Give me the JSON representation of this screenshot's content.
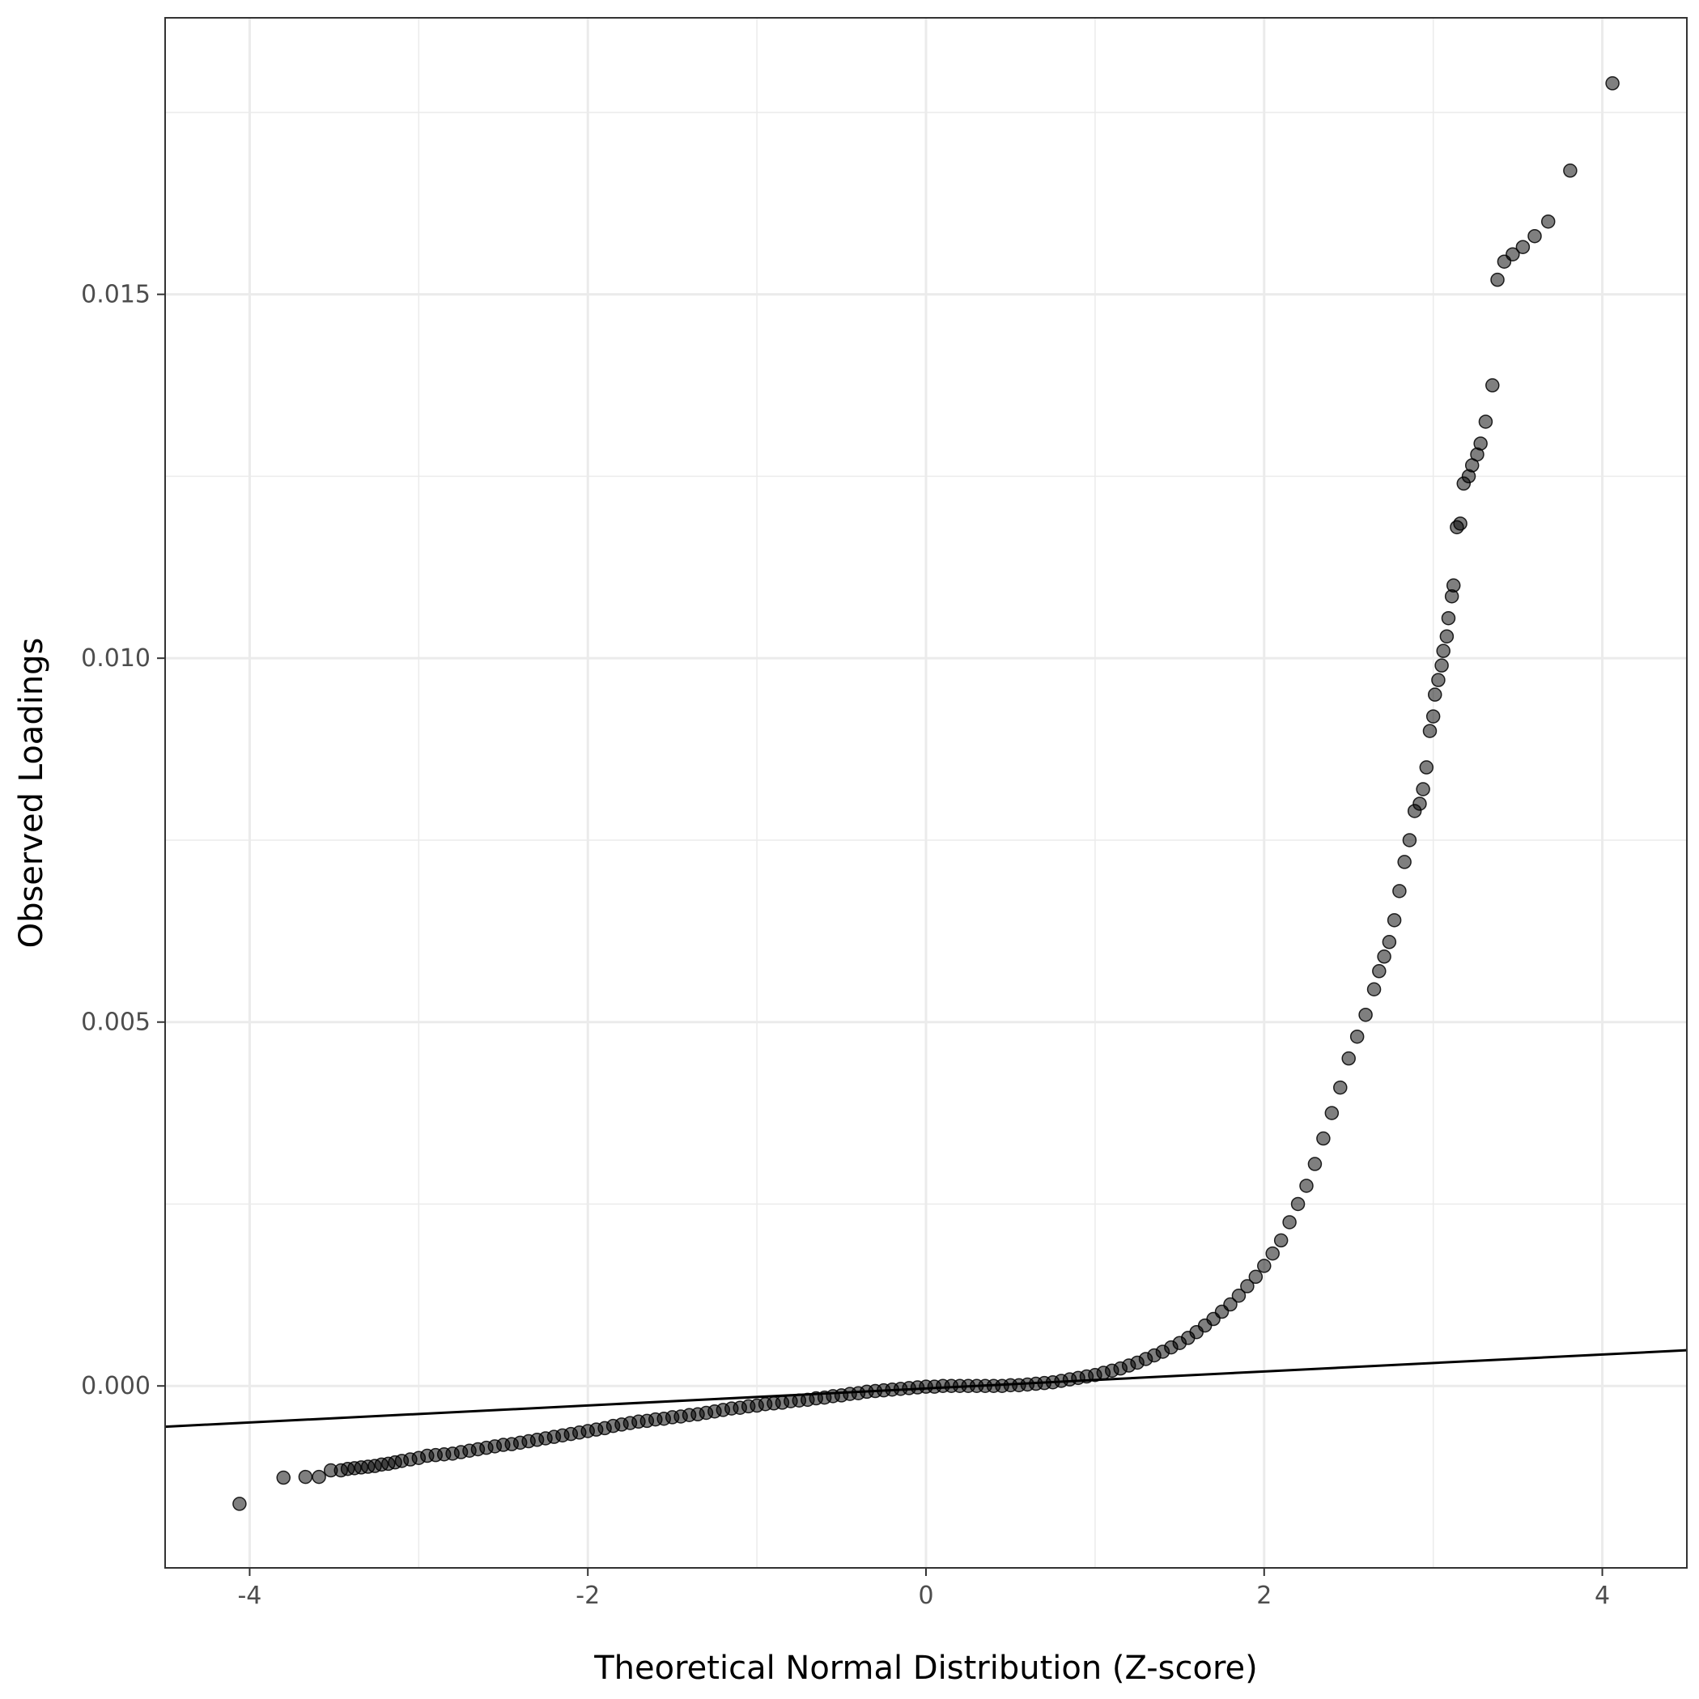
{
  "chart_data": {
    "type": "scatter",
    "title": "",
    "xlabel": "Theoretical Normal Distribution (Z-score)",
    "ylabel": "Observed Loadings",
    "xlim": [
      -4.5,
      4.5
    ],
    "ylim": [
      -0.0025,
      0.0188
    ],
    "x_ticks": [
      -4,
      -2,
      0,
      2,
      4
    ],
    "x_tick_labels": [
      "-4",
      "-2",
      "0",
      "2",
      "4"
    ],
    "y_ticks": [
      0.0,
      0.005,
      0.01,
      0.015
    ],
    "y_tick_labels": [
      "0.000",
      "0.005",
      "0.010",
      "0.015"
    ],
    "grid": true,
    "theme": "black-and-white with light grey gridlines",
    "point_color": "#000000",
    "point_opacity": 0.5,
    "reference_line": {
      "color": "#000000",
      "points": [
        [
          -4.5,
          -0.00056
        ],
        [
          4.5,
          0.00049
        ]
      ]
    },
    "series": [
      {
        "points": [
          [
            -4.06,
            -0.00162
          ],
          [
            -3.8,
            -0.00126
          ],
          [
            -3.67,
            -0.00125
          ],
          [
            -3.59,
            -0.00125
          ],
          [
            -3.52,
            -0.00116
          ],
          [
            -3.46,
            -0.00116
          ],
          [
            -3.42,
            -0.00114
          ],
          [
            -3.38,
            -0.00113
          ],
          [
            -3.34,
            -0.00112
          ],
          [
            -3.3,
            -0.00111
          ],
          [
            -3.26,
            -0.0011
          ],
          [
            -3.22,
            -0.00108
          ],
          [
            -3.18,
            -0.00107
          ],
          [
            -3.14,
            -0.00105
          ],
          [
            -3.1,
            -0.00103
          ],
          [
            -3.05,
            -0.00101
          ],
          [
            -3.0,
            -0.00099
          ],
          [
            -2.95,
            -0.00096
          ],
          [
            -2.9,
            -0.00095
          ],
          [
            -2.85,
            -0.00094
          ],
          [
            -2.8,
            -0.00093
          ],
          [
            -2.75,
            -0.00091
          ],
          [
            -2.7,
            -0.00089
          ],
          [
            -2.65,
            -0.00087
          ],
          [
            -2.6,
            -0.00085
          ],
          [
            -2.55,
            -0.00083
          ],
          [
            -2.5,
            -0.00081
          ],
          [
            -2.45,
            -0.0008
          ],
          [
            -2.4,
            -0.00078
          ],
          [
            -2.35,
            -0.00076
          ],
          [
            -2.3,
            -0.00074
          ],
          [
            -2.25,
            -0.00072
          ],
          [
            -2.2,
            -0.0007
          ],
          [
            -2.15,
            -0.00068
          ],
          [
            -2.1,
            -0.00066
          ],
          [
            -2.05,
            -0.00064
          ],
          [
            -2.0,
            -0.00062
          ],
          [
            -1.95,
            -0.0006
          ],
          [
            -1.9,
            -0.00058
          ],
          [
            -1.85,
            -0.00055
          ],
          [
            -1.8,
            -0.00053
          ],
          [
            -1.75,
            -0.00051
          ],
          [
            -1.7,
            -0.00049
          ],
          [
            -1.65,
            -0.00048
          ],
          [
            -1.6,
            -0.00046
          ],
          [
            -1.55,
            -0.00045
          ],
          [
            -1.5,
            -0.00043
          ],
          [
            -1.45,
            -0.00042
          ],
          [
            -1.4,
            -0.0004
          ],
          [
            -1.35,
            -0.00039
          ],
          [
            -1.3,
            -0.00037
          ],
          [
            -1.25,
            -0.00035
          ],
          [
            -1.2,
            -0.00033
          ],
          [
            -1.15,
            -0.00031
          ],
          [
            -1.1,
            -0.0003
          ],
          [
            -1.05,
            -0.00028
          ],
          [
            -1.0,
            -0.00027
          ],
          [
            -0.95,
            -0.00025
          ],
          [
            -0.9,
            -0.00024
          ],
          [
            -0.85,
            -0.00023
          ],
          [
            -0.8,
            -0.00021
          ],
          [
            -0.75,
            -0.0002
          ],
          [
            -0.7,
            -0.00019
          ],
          [
            -0.65,
            -0.00017
          ],
          [
            -0.6,
            -0.00016
          ],
          [
            -0.55,
            -0.00014
          ],
          [
            -0.5,
            -0.00013
          ],
          [
            -0.45,
            -0.00011
          ],
          [
            -0.4,
            -0.0001
          ],
          [
            -0.35,
            -8e-05
          ],
          [
            -0.3,
            -7e-05
          ],
          [
            -0.25,
            -6e-05
          ],
          [
            -0.2,
            -5e-05
          ],
          [
            -0.15,
            -4e-05
          ],
          [
            -0.1,
            -3e-05
          ],
          [
            -0.05,
            -2e-05
          ],
          [
            0.0,
            -1e-05
          ],
          [
            0.05,
            -1e-05
          ],
          [
            0.1,
            0.0
          ],
          [
            0.15,
            0.0
          ],
          [
            0.2,
            0.0
          ],
          [
            0.25,
            0.0
          ],
          [
            0.3,
            0.0
          ],
          [
            0.35,
            0.0
          ],
          [
            0.4,
            0.0
          ],
          [
            0.45,
            0.0
          ],
          [
            0.5,
            1e-05
          ],
          [
            0.55,
            1e-05
          ],
          [
            0.6,
            2e-05
          ],
          [
            0.65,
            3e-05
          ],
          [
            0.7,
            4e-05
          ],
          [
            0.75,
            5e-05
          ],
          [
            0.8,
            7e-05
          ],
          [
            0.85,
            9e-05
          ],
          [
            0.9,
            0.00011
          ],
          [
            0.95,
            0.00013
          ],
          [
            1.0,
            0.00015
          ],
          [
            1.05,
            0.00018
          ],
          [
            1.1,
            0.00021
          ],
          [
            1.15,
            0.00024
          ],
          [
            1.2,
            0.00028
          ],
          [
            1.25,
            0.00032
          ],
          [
            1.3,
            0.00037
          ],
          [
            1.35,
            0.00042
          ],
          [
            1.4,
            0.00047
          ],
          [
            1.45,
            0.00053
          ],
          [
            1.5,
            0.00059
          ],
          [
            1.55,
            0.00066
          ],
          [
            1.6,
            0.00074
          ],
          [
            1.65,
            0.00083
          ],
          [
            1.7,
            0.00092
          ],
          [
            1.75,
            0.00102
          ],
          [
            1.8,
            0.00112
          ],
          [
            1.85,
            0.00124
          ],
          [
            1.9,
            0.00137
          ],
          [
            1.95,
            0.0015
          ],
          [
            2.0,
            0.00165
          ],
          [
            2.05,
            0.00182
          ],
          [
            2.1,
            0.002
          ],
          [
            2.15,
            0.00225
          ],
          [
            2.2,
            0.0025
          ],
          [
            2.25,
            0.00275
          ],
          [
            2.3,
            0.00305
          ],
          [
            2.35,
            0.0034
          ],
          [
            2.4,
            0.00375
          ],
          [
            2.45,
            0.0041
          ],
          [
            2.5,
            0.0045
          ],
          [
            2.55,
            0.0048
          ],
          [
            2.6,
            0.0051
          ],
          [
            2.65,
            0.00545
          ],
          [
            2.68,
            0.0057
          ],
          [
            2.71,
            0.0059
          ],
          [
            2.74,
            0.0061
          ],
          [
            2.77,
            0.0064
          ],
          [
            2.8,
            0.0068
          ],
          [
            2.83,
            0.0072
          ],
          [
            2.86,
            0.0075
          ],
          [
            2.89,
            0.0079
          ],
          [
            2.92,
            0.008
          ],
          [
            2.94,
            0.0082
          ],
          [
            2.96,
            0.0085
          ],
          [
            2.98,
            0.009
          ],
          [
            3.0,
            0.0092
          ],
          [
            3.01,
            0.0095
          ],
          [
            3.03,
            0.0097
          ],
          [
            3.05,
            0.0099
          ],
          [
            3.06,
            0.0101
          ],
          [
            3.08,
            0.0103
          ],
          [
            3.09,
            0.01055
          ],
          [
            3.11,
            0.01085
          ],
          [
            3.12,
            0.011
          ],
          [
            3.14,
            0.0118
          ],
          [
            3.16,
            0.01185
          ],
          [
            3.18,
            0.0124
          ],
          [
            3.21,
            0.0125
          ],
          [
            3.23,
            0.01265
          ],
          [
            3.26,
            0.0128
          ],
          [
            3.28,
            0.01295
          ],
          [
            3.31,
            0.01325
          ],
          [
            3.35,
            0.01375
          ],
          [
            3.38,
            0.0152
          ],
          [
            3.42,
            0.01545
          ],
          [
            3.47,
            0.01555
          ],
          [
            3.53,
            0.01565
          ],
          [
            3.6,
            0.0158
          ],
          [
            3.68,
            0.016
          ],
          [
            3.81,
            0.0167
          ],
          [
            4.06,
            0.0179
          ]
        ]
      }
    ]
  }
}
